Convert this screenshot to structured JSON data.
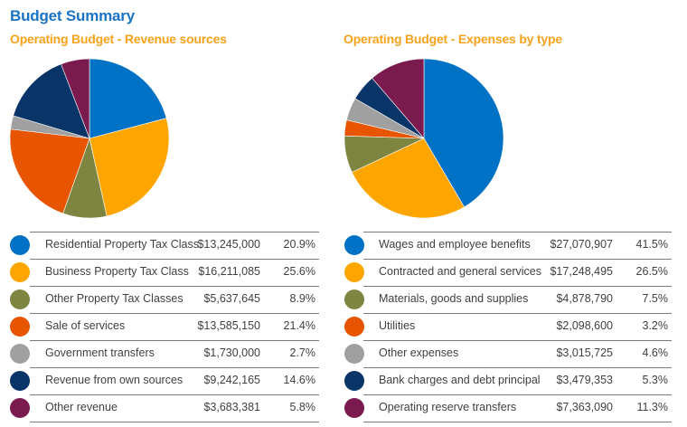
{
  "title": "Budget Summary",
  "chart_data": [
    {
      "type": "pie",
      "title": "Operating Budget - Revenue sources",
      "categories": [
        "Residential Property Tax Class",
        "Business Property Tax Class",
        "Other Property Tax Classes",
        "Sale of services",
        "Government transfers",
        "Revenue from own sources",
        "Other revenue"
      ],
      "values": [
        13245000,
        16211085,
        5637645,
        13585150,
        1730000,
        9242165,
        3683381
      ],
      "amounts": [
        "$13,245,000",
        "$16,211,085",
        "$5,637,645",
        "$13,585,150",
        "$1,730,000",
        "$9,242,165",
        "$3,683,381"
      ],
      "percents": [
        "20.9%",
        "25.6%",
        "8.9%",
        "21.4%",
        "2.7%",
        "14.6%",
        "5.8%"
      ],
      "colors": [
        "#0072c6",
        "#ffa500",
        "#7d8540",
        "#e85500",
        "#a0a0a0",
        "#083468",
        "#7a1a4e"
      ],
      "legend": "bottom"
    },
    {
      "type": "pie",
      "title": "Operating Budget - Expenses by type",
      "categories": [
        "Wages and employee benefits",
        "Contracted and general services",
        "Materials, goods and supplies",
        "Utilities",
        "Other expenses",
        "Bank charges and debt principal",
        "Operating reserve transfers"
      ],
      "values": [
        27070907,
        17248495,
        4878790,
        2098600,
        3015725,
        3479353,
        7363090
      ],
      "amounts": [
        "$27,070,907",
        "$17,248,495",
        "$4,878,790",
        "$2,098,600",
        "$3,015,725",
        "$3,479,353",
        "$7,363,090"
      ],
      "percents": [
        "41.5%",
        "26.5%",
        "7.5%",
        "3.2%",
        "4.6%",
        "5.3%",
        "11.3%"
      ],
      "colors": [
        "#0072c6",
        "#ffa500",
        "#7d8540",
        "#e85500",
        "#a0a0a0",
        "#083468",
        "#7a1a4e"
      ],
      "legend": "bottom"
    }
  ]
}
